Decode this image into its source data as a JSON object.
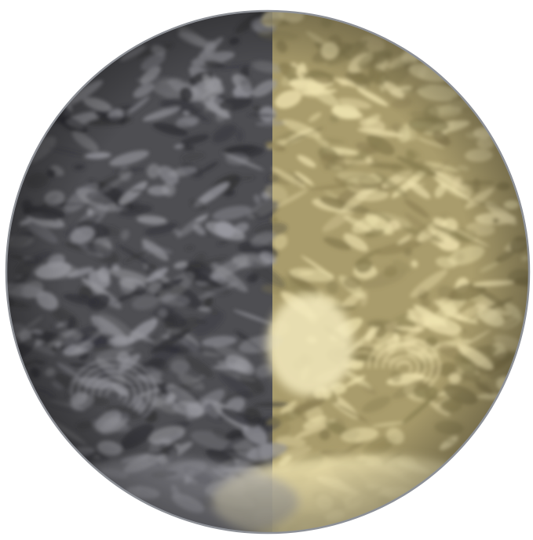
{
  "image": {
    "subject": "earth-disk",
    "colors": {
      "background": "#ffffff",
      "left_half_base": "#4e4e52",
      "left_half_dark": "#2f2f33",
      "left_half_cloud": "#9a9aa0",
      "right_half_base": "#a99c6c",
      "right_half_dark": "#857a4f",
      "right_half_cloud": "#efe3b0",
      "right_half_bright": "#f3e9bd",
      "rim": "#8d9096"
    }
  }
}
